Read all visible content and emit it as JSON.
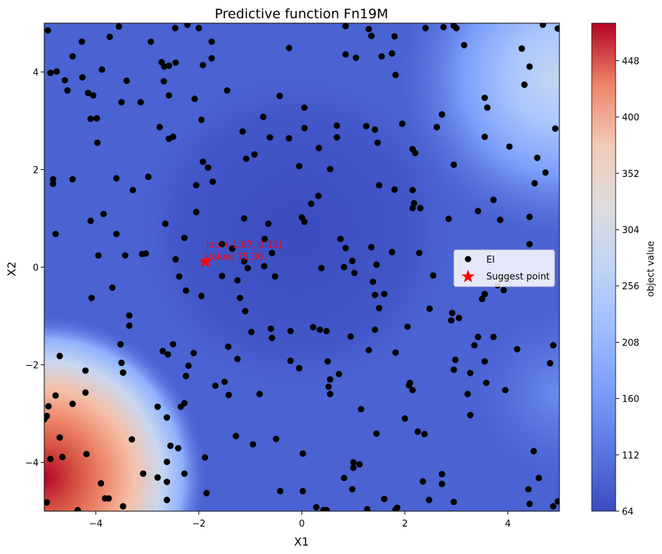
{
  "chart_data": {
    "type": "contour",
    "title": "Predictive function Fn19M",
    "xlabel": "X1",
    "ylabel": "X2",
    "xlim": [
      -5,
      5
    ],
    "ylim": [
      -5,
      5
    ],
    "x_ticks": [
      -4,
      -2,
      0,
      2,
      4
    ],
    "y_ticks": [
      -4,
      -2,
      0,
      2,
      4
    ],
    "colormap": "coolwarm",
    "colorbar": {
      "label": "object value",
      "min": 64,
      "max": 480,
      "ticks": [
        64,
        112,
        160,
        208,
        256,
        304,
        352,
        400,
        448
      ]
    },
    "legend": {
      "placement": "center-right",
      "entries": [
        {
          "label": "EI",
          "marker": "circle",
          "color": "#000000"
        },
        {
          "label": "Suggest point",
          "marker": "star",
          "color": "#ff0000"
        }
      ]
    },
    "suggest_point": {
      "x": -1.87,
      "y": 0.11,
      "loc_label": "loc: (-1.87, 0.11)",
      "value_label": "value: 75.36"
    },
    "ei_points": [
      [
        -4.93,
        4.85
      ],
      [
        -4.88,
        3.98
      ],
      [
        -4.76,
        4.01
      ],
      [
        -4.6,
        3.83
      ],
      [
        -4.55,
        3.62
      ],
      [
        -4.45,
        4.32
      ],
      [
        -4.27,
        4.62
      ],
      [
        -4.26,
        3.89
      ],
      [
        -4.15,
        3.57
      ],
      [
        -4.05,
        3.52
      ],
      [
        -3.88,
        4.05
      ],
      [
        -3.98,
        3.05
      ],
      [
        -4.1,
        3.04
      ],
      [
        -3.97,
        2.55
      ],
      [
        -3.73,
        4.72
      ],
      [
        -3.55,
        4.93
      ],
      [
        -3.4,
        3.82
      ],
      [
        -3.13,
        3.38
      ],
      [
        -3.5,
        3.38
      ],
      [
        -2.93,
        4.62
      ],
      [
        -2.72,
        4.2
      ],
      [
        -2.45,
        4.19
      ],
      [
        -2.58,
        4.13
      ],
      [
        -2.67,
        4.11
      ],
      [
        -2.22,
        4.97
      ],
      [
        -2.46,
        4.9
      ],
      [
        -2.0,
        4.9
      ],
      [
        -1.92,
        4.14
      ],
      [
        -1.75,
        4.28
      ],
      [
        -1.75,
        4.62
      ],
      [
        -1.45,
        3.62
      ],
      [
        -2.08,
        3.45
      ],
      [
        -1.95,
        3.02
      ],
      [
        -2.68,
        3.81
      ],
      [
        -2.58,
        3.52
      ],
      [
        -2.76,
        2.87
      ],
      [
        -2.58,
        2.63
      ],
      [
        -2.5,
        2.67
      ],
      [
        -1.92,
        2.16
      ],
      [
        -1.82,
        2.04
      ],
      [
        -1.73,
        1.75
      ],
      [
        -2.05,
        1.68
      ],
      [
        -2.05,
        1.13
      ],
      [
        -1.15,
        2.78
      ],
      [
        -1.08,
        2.22
      ],
      [
        -0.92,
        2.31
      ],
      [
        -0.75,
        3.08
      ],
      [
        -0.62,
        2.66
      ],
      [
        -0.43,
        3.51
      ],
      [
        -0.25,
        4.49
      ],
      [
        -0.25,
        2.64
      ],
      [
        0.05,
        2.85
      ],
      [
        0.05,
        3.27
      ],
      [
        -0.05,
        2.07
      ],
      [
        0.33,
        2.44
      ],
      [
        0.55,
        2.01
      ],
      [
        0.68,
        2.9
      ],
      [
        0.68,
        2.66
      ],
      [
        0.85,
        4.94
      ],
      [
        0.85,
        4.36
      ],
      [
        1.05,
        4.29
      ],
      [
        1.3,
        4.88
      ],
      [
        1.35,
        4.74
      ],
      [
        1.55,
        4.32
      ],
      [
        1.75,
        4.38
      ],
      [
        1.8,
        4.73
      ],
      [
        1.82,
        3.94
      ],
      [
        1.25,
        2.89
      ],
      [
        1.42,
        2.82
      ],
      [
        1.47,
        2.55
      ],
      [
        1.5,
        1.68
      ],
      [
        1.8,
        1.59
      ],
      [
        1.95,
        2.94
      ],
      [
        2.15,
        2.42
      ],
      [
        2.2,
        2.34
      ],
      [
        2.15,
        1.58
      ],
      [
        2.18,
        1.31
      ],
      [
        2.15,
        1.21
      ],
      [
        2.3,
        1.21
      ],
      [
        2.4,
        4.9
      ],
      [
        2.75,
        4.92
      ],
      [
        2.95,
        4.95
      ],
      [
        3.0,
        4.9
      ],
      [
        3.15,
        4.55
      ],
      [
        2.72,
        3.13
      ],
      [
        2.62,
        2.87
      ],
      [
        2.95,
        2.1
      ],
      [
        2.85,
        0.99
      ],
      [
        3.55,
        3.47
      ],
      [
        3.6,
        3.27
      ],
      [
        3.55,
        2.67
      ],
      [
        3.72,
        1.38
      ],
      [
        3.42,
        1.15
      ],
      [
        3.85,
        0.97
      ],
      [
        4.03,
        2.47
      ],
      [
        4.27,
        4.48
      ],
      [
        4.32,
        3.74
      ],
      [
        4.42,
        4.11
      ],
      [
        4.57,
        2.24
      ],
      [
        4.52,
        1.72
      ],
      [
        4.73,
        1.94
      ],
      [
        4.92,
        2.84
      ],
      [
        4.68,
        4.97
      ],
      [
        4.97,
        4.89
      ],
      [
        4.42,
        1.03
      ],
      [
        4.42,
        0.47
      ],
      [
        -4.45,
        1.8
      ],
      [
        -4.83,
        1.8
      ],
      [
        -4.83,
        1.71
      ],
      [
        -4.78,
        0.68
      ],
      [
        -4.1,
        0.95
      ],
      [
        -3.85,
        1.09
      ],
      [
        -3.6,
        1.82
      ],
      [
        -3.28,
        1.58
      ],
      [
        -2.98,
        1.85
      ],
      [
        -2.65,
        0.89
      ],
      [
        -3.03,
        0.28
      ],
      [
        -3.1,
        0.27
      ],
      [
        -3.43,
        0.24
      ],
      [
        -3.6,
        0.68
      ],
      [
        -3.95,
        0.24
      ],
      [
        -2.45,
        0.16
      ],
      [
        -2.38,
        -0.19
      ],
      [
        -2.28,
        0.6
      ],
      [
        -2.25,
        -0.48
      ],
      [
        -1.95,
        -0.59
      ],
      [
        -1.55,
        0.47
      ],
      [
        -1.55,
        -0.18
      ],
      [
        -1.35,
        0.38
      ],
      [
        -1.12,
        1.0
      ],
      [
        -1.12,
        0.12
      ],
      [
        -1.25,
        -0.27
      ],
      [
        -1.1,
        -0.9
      ],
      [
        -1.2,
        -0.63
      ],
      [
        -0.72,
        0.58
      ],
      [
        -0.65,
        0.89
      ],
      [
        -0.58,
        0.29
      ],
      [
        -0.73,
        0.02
      ],
      [
        -0.52,
        -0.19
      ],
      [
        -1.05,
        -0.02
      ],
      [
        0.0,
        1.02
      ],
      [
        0.05,
        0.93
      ],
      [
        0.18,
        1.3
      ],
      [
        0.32,
        1.46
      ],
      [
        0.38,
        -0.02
      ],
      [
        0.75,
        0.58
      ],
      [
        0.85,
        0.39
      ],
      [
        0.82,
        0.0
      ],
      [
        0.98,
        0.13
      ],
      [
        1.02,
        -0.12
      ],
      [
        1.35,
        0.41
      ],
      [
        1.45,
        0.05
      ],
      [
        1.38,
        -0.3
      ],
      [
        1.42,
        -0.57
      ],
      [
        1.6,
        -0.55
      ],
      [
        1.75,
        0.31
      ],
      [
        2.28,
        0.29
      ],
      [
        1.5,
        -0.84
      ],
      [
        1.42,
        -1.28
      ],
      [
        1.3,
        -1.7
      ],
      [
        1.82,
        -1.75
      ],
      [
        2.05,
        -1.22
      ],
      [
        2.1,
        -2.37
      ],
      [
        2.08,
        -2.42
      ],
      [
        2.15,
        -2.52
      ],
      [
        2.0,
        -3.1
      ],
      [
        2.25,
        -3.37
      ],
      [
        2.38,
        -3.42
      ],
      [
        2.48,
        -0.85
      ],
      [
        2.55,
        -0.17
      ],
      [
        2.92,
        -0.94
      ],
      [
        2.9,
        -1.09
      ],
      [
        3.05,
        -1.04
      ],
      [
        2.98,
        -1.9
      ],
      [
        2.95,
        -2.1
      ],
      [
        3.22,
        -2.6
      ],
      [
        3.27,
        -3.03
      ],
      [
        3.35,
        -1.6
      ],
      [
        3.42,
        -1.43
      ],
      [
        3.72,
        -1.43
      ],
      [
        3.27,
        -2.17
      ],
      [
        3.55,
        -1.93
      ],
      [
        3.58,
        -2.37
      ],
      [
        3.55,
        -0.55
      ],
      [
        3.5,
        -0.65
      ],
      [
        3.8,
        -0.37
      ],
      [
        3.95,
        -2.52
      ],
      [
        4.18,
        -1.68
      ],
      [
        4.82,
        -1.97
      ],
      [
        4.88,
        -1.6
      ],
      [
        4.4,
        -4.55
      ],
      [
        4.42,
        -4.85
      ],
      [
        4.5,
        -3.77
      ],
      [
        4.6,
        -4.32
      ],
      [
        4.88,
        -4.9
      ],
      [
        4.97,
        -4.8
      ],
      [
        3.92,
        -0.47
      ],
      [
        -1.43,
        -1.63
      ],
      [
        -1.5,
        -2.35
      ],
      [
        -1.42,
        -2.62
      ],
      [
        -1.25,
        -1.88
      ],
      [
        -1.28,
        -3.46
      ],
      [
        -0.98,
        -1.33
      ],
      [
        -0.82,
        -2.6
      ],
      [
        -0.6,
        -1.26
      ],
      [
        -0.58,
        -1.45
      ],
      [
        -0.22,
        -1.31
      ],
      [
        -0.22,
        -1.92
      ],
      [
        -0.05,
        -2.07
      ],
      [
        -0.95,
        -3.63
      ],
      [
        -0.5,
        -3.52
      ],
      [
        0.02,
        -3.82
      ],
      [
        -0.42,
        -4.59
      ],
      [
        0.02,
        -4.59
      ],
      [
        0.22,
        -1.23
      ],
      [
        0.35,
        -1.28
      ],
      [
        0.48,
        -1.31
      ],
      [
        0.5,
        -1.93
      ],
      [
        0.55,
        -2.3
      ],
      [
        0.52,
        -2.45
      ],
      [
        0.55,
        -2.6
      ],
      [
        0.72,
        -2.19
      ],
      [
        0.95,
        -1.42
      ],
      [
        1.15,
        -2.91
      ],
      [
        1.27,
        -4.96
      ],
      [
        1.45,
        -3.41
      ],
      [
        1.0,
        -4.0
      ],
      [
        1.0,
        -4.11
      ],
      [
        1.12,
        -4.04
      ],
      [
        0.98,
        -4.55
      ],
      [
        0.82,
        -4.32
      ],
      [
        0.28,
        -4.92
      ],
      [
        0.42,
        -4.98
      ],
      [
        0.48,
        -4.98
      ],
      [
        1.6,
        -4.75
      ],
      [
        1.82,
        -4.97
      ],
      [
        1.85,
        -4.93
      ],
      [
        2.35,
        -4.39
      ],
      [
        2.47,
        -4.77
      ],
      [
        2.72,
        -4.24
      ],
      [
        2.72,
        -4.44
      ],
      [
        2.95,
        -4.81
      ],
      [
        -1.68,
        -2.43
      ],
      [
        -1.85,
        -4.63
      ],
      [
        -1.88,
        -3.9
      ],
      [
        -2.1,
        -1.76
      ],
      [
        -2.2,
        -2.02
      ],
      [
        -2.25,
        -2.23
      ],
      [
        -2.28,
        -2.79
      ],
      [
        -2.35,
        -2.86
      ],
      [
        -2.5,
        -1.58
      ],
      [
        -2.55,
        -3.66
      ],
      [
        -2.4,
        -3.71
      ],
      [
        -2.6,
        -1.79
      ],
      [
        -2.7,
        -1.72
      ],
      [
        -2.8,
        -2.86
      ],
      [
        -2.62,
        -3.08
      ],
      [
        -2.62,
        -3.99
      ],
      [
        -2.62,
        -4.4
      ],
      [
        -2.62,
        -4.77
      ],
      [
        -2.8,
        -4.31
      ],
      [
        -2.28,
        -4.23
      ],
      [
        -3.08,
        -4.23
      ],
      [
        -3.3,
        -3.53
      ],
      [
        -3.35,
        -1.2
      ],
      [
        -3.35,
        -0.99
      ],
      [
        -3.52,
        -1.58
      ],
      [
        -3.5,
        -1.96
      ],
      [
        -3.47,
        -2.16
      ],
      [
        -3.68,
        -0.42
      ],
      [
        -4.08,
        -0.63
      ],
      [
        -4.2,
        -2.12
      ],
      [
        -4.2,
        -2.57
      ],
      [
        -4.45,
        -2.8
      ],
      [
        -4.18,
        -3.83
      ],
      [
        -3.82,
        -4.74
      ],
      [
        -3.75,
        -4.74
      ],
      [
        -3.9,
        -4.43
      ],
      [
        -3.47,
        -4.9
      ],
      [
        -4.35,
        -4.98
      ],
      [
        -4.7,
        -1.82
      ],
      [
        -4.78,
        -2.63
      ],
      [
        -4.92,
        -2.85
      ],
      [
        -4.95,
        -3.05
      ],
      [
        -5.0,
        -3.12
      ],
      [
        -4.65,
        -3.89
      ],
      [
        -4.88,
        -3.93
      ],
      [
        -4.7,
        -3.49
      ],
      [
        -4.95,
        -4.82
      ]
    ]
  }
}
